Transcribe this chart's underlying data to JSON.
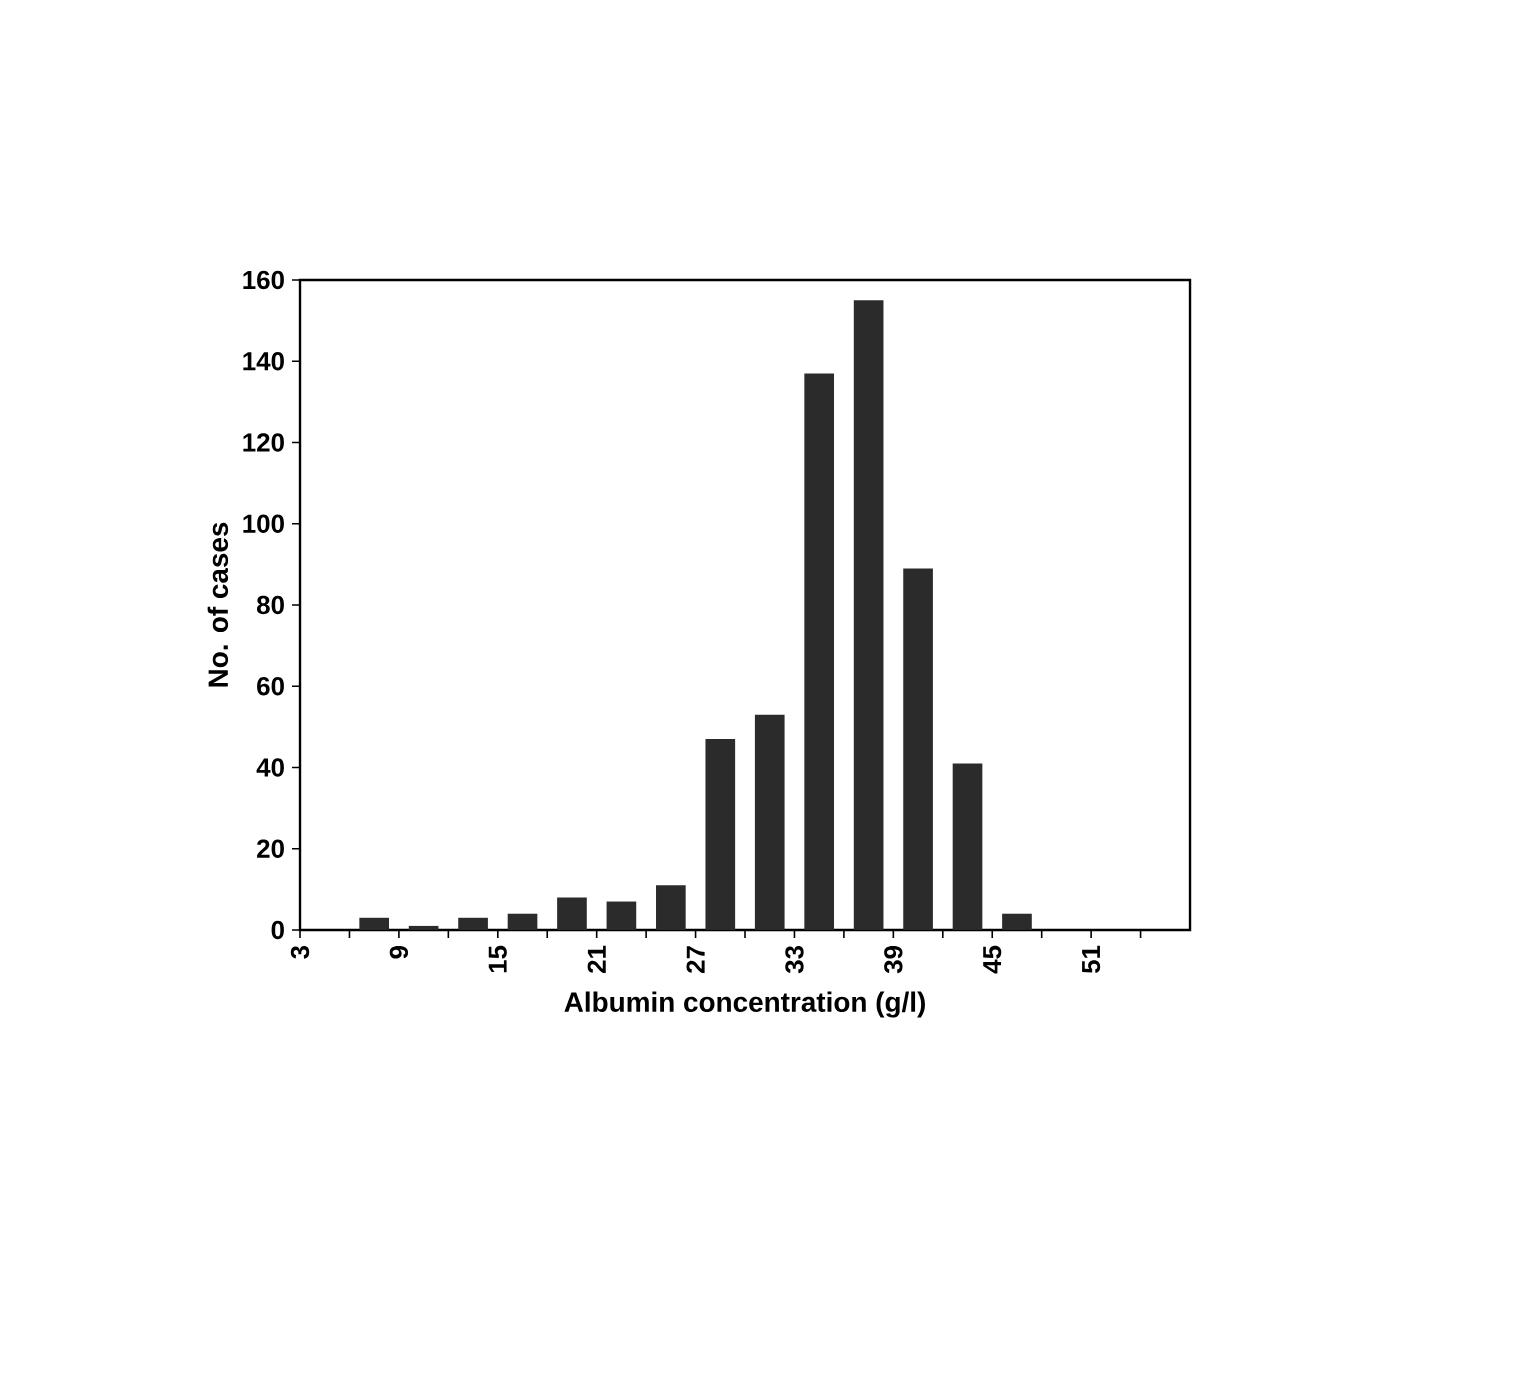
{
  "chart_data": {
    "type": "histogram",
    "xlabel": "Albumin concentration (g/l)",
    "ylabel": "No. of cases",
    "bins": [
      3,
      6,
      9,
      12,
      15,
      18,
      21,
      24,
      27,
      30,
      33,
      36,
      39,
      42,
      45,
      48,
      51,
      54,
      57
    ],
    "values": [
      0,
      3,
      1,
      3,
      4,
      8,
      7,
      11,
      47,
      53,
      137,
      155,
      89,
      41,
      4,
      0,
      0,
      0
    ],
    "color": "#2b2b2b",
    "xlim": [
      3,
      57
    ],
    "xticks": [
      3,
      {
        "value": 6,
        "label": null
      },
      9,
      {
        "value": 12,
        "label": null
      },
      15,
      {
        "value": 18,
        "label": null
      },
      21,
      {
        "value": 24,
        "label": null
      },
      27,
      {
        "value": 30,
        "label": null
      },
      33,
      {
        "value": 36,
        "label": null
      },
      39,
      {
        "value": 42,
        "label": null
      },
      45,
      {
        "value": 48,
        "label": null
      },
      51,
      {
        "value": 54,
        "label": null
      }
    ],
    "ylim": [
      0,
      160
    ],
    "yticks": [
      0,
      20,
      40,
      60,
      80,
      100,
      120,
      140,
      160
    ],
    "grid": false
  }
}
